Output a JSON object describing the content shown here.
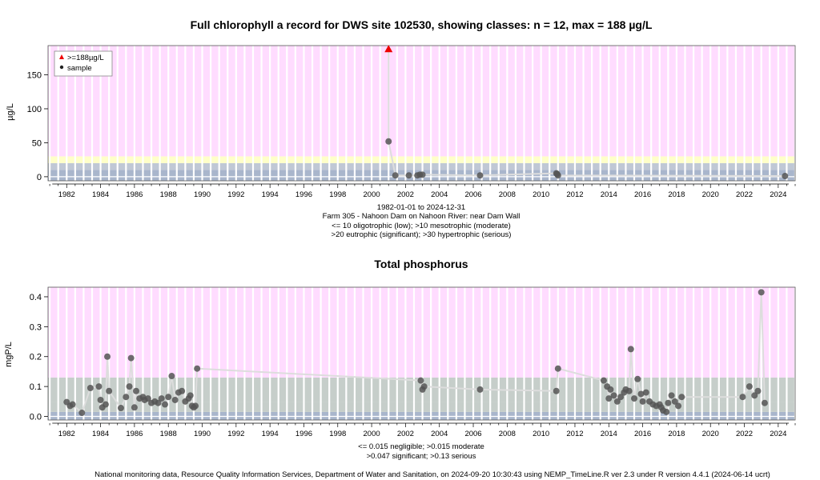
{
  "colors": {
    "oligotrophic": "#a9b6cc",
    "mesotrophic": "#c0c8d5",
    "eutrophic": "#ffffc8",
    "hypertrophic": "#ffdcff",
    "p_negligible": "#a9b6cc",
    "p_moderate": "#c6ceca",
    "p_significant": "#c6ceca",
    "p_serious": "#ffdcff",
    "sample": "#555555",
    "exceed": "#ee0000",
    "line": "#dddddd"
  },
  "footer": "National monitoring data, Resource Quality Information Services, Department of Water and Sanitation, on 2024-09-20 10:30:43 using NEMP_TimeLine.R ver 2.3 under R version 4.4.1 (2024-06-14 ucrt)",
  "chart_data": [
    {
      "type": "scatter",
      "title": "Full chlorophyll a record for DWS site 102530, showing classes: n = 12, max = 188 µg/L",
      "ylabel": "µg/L",
      "xlabel": "",
      "xlim": [
        1980.9,
        2025.0
      ],
      "ylim": [
        -6,
        193
      ],
      "xticks": [
        1982,
        1984,
        1986,
        1988,
        1990,
        1992,
        1994,
        1996,
        1998,
        2000,
        2002,
        2004,
        2006,
        2008,
        2010,
        2012,
        2014,
        2016,
        2018,
        2020,
        2022,
        2024
      ],
      "yticks": [
        0,
        50,
        100,
        150
      ],
      "bands": [
        {
          "from": -6,
          "to": 10,
          "color_key": "oligotrophic"
        },
        {
          "from": 10,
          "to": 20,
          "color_key": "mesotrophic"
        },
        {
          "from": 20,
          "to": 30,
          "color_key": "eutrophic"
        },
        {
          "from": 30,
          "to": 193,
          "color_key": "hypertrophic"
        }
      ],
      "legend": {
        "position": "top-left",
        "entries": [
          {
            "label": ">=188µg/L",
            "marker": "triangle"
          },
          {
            "label": "sample",
            "marker": "dot"
          }
        ]
      },
      "caption": [
        "1982-01-01 to 2024-12-31",
        "Farm 305 - Nahoon Dam on Nahoon River: near Dam Wall",
        "<= 10 oligotrophic (low); >10 mesotrophic (moderate)",
        ">20 eutrophic (significant); >30 hypertrophic (serious)"
      ],
      "series": [
        {
          "name": "sample",
          "x": [
            2001.0,
            2001.4,
            2002.2,
            2002.7,
            2002.85,
            2003.0,
            2006.4,
            2010.9,
            2010.95,
            2011.0,
            2024.4
          ],
          "y": [
            52,
            2,
            2,
            2,
            3,
            3,
            2,
            5,
            4,
            2,
            1
          ]
        },
        {
          "name": ">=188µg/L",
          "x": [
            2001.0
          ],
          "y": [
            188
          ]
        }
      ]
    },
    {
      "type": "scatter",
      "title": "Total phosphorus",
      "ylabel": "mgP/L",
      "xlabel": "",
      "xlim": [
        1980.9,
        2025.0
      ],
      "ylim": [
        -0.012,
        0.432
      ],
      "xticks": [
        1982,
        1984,
        1986,
        1988,
        1990,
        1992,
        1994,
        1996,
        1998,
        2000,
        2002,
        2004,
        2006,
        2008,
        2010,
        2012,
        2014,
        2016,
        2018,
        2020,
        2022,
        2024
      ],
      "yticks": [
        0.0,
        0.1,
        0.2,
        0.3,
        0.4
      ],
      "bands": [
        {
          "from": -0.012,
          "to": 0.015,
          "color_key": "p_negligible"
        },
        {
          "from": 0.015,
          "to": 0.047,
          "color_key": "p_moderate"
        },
        {
          "from": 0.047,
          "to": 0.13,
          "color_key": "p_significant"
        },
        {
          "from": 0.13,
          "to": 0.432,
          "color_key": "p_serious"
        }
      ],
      "caption": [
        "<= 0.015 negligible; >0.015 moderate",
        ">0.047 significant; >0.13 serious"
      ],
      "series": [
        {
          "name": "sample",
          "x": [
            1982.0,
            1982.2,
            1982.35,
            1982.9,
            1983.4,
            1983.9,
            1984.0,
            1984.1,
            1984.3,
            1984.4,
            1984.5,
            1985.2,
            1985.5,
            1985.7,
            1985.8,
            1986.0,
            1986.1,
            1986.3,
            1986.5,
            1986.6,
            1986.8,
            1987.0,
            1987.2,
            1987.4,
            1987.6,
            1987.8,
            1988.0,
            1988.2,
            1988.4,
            1988.6,
            1988.8,
            1989.0,
            1989.2,
            1989.3,
            1989.4,
            1989.5,
            1989.6,
            1989.7,
            2002.9,
            2003.0,
            2003.1,
            2006.4,
            2010.9,
            2011.0,
            2013.7,
            2013.9,
            2014.0,
            2014.1,
            2014.3,
            2014.5,
            2014.7,
            2014.9,
            2015.0,
            2015.2,
            2015.3,
            2015.5,
            2015.7,
            2015.9,
            2016.0,
            2016.2,
            2016.4,
            2016.6,
            2016.8,
            2017.0,
            2017.1,
            2017.2,
            2017.4,
            2017.5,
            2017.7,
            2017.9,
            2018.1,
            2018.3,
            2021.9,
            2022.3,
            2022.6,
            2022.8,
            2023.0,
            2023.2
          ],
          "y": [
            0.048,
            0.035,
            0.04,
            0.012,
            0.095,
            0.1,
            0.055,
            0.03,
            0.04,
            0.2,
            0.085,
            0.028,
            0.065,
            0.1,
            0.195,
            0.03,
            0.085,
            0.06,
            0.065,
            0.055,
            0.06,
            0.045,
            0.05,
            0.045,
            0.06,
            0.04,
            0.065,
            0.135,
            0.055,
            0.08,
            0.085,
            0.05,
            0.06,
            0.07,
            0.035,
            0.03,
            0.035,
            0.16,
            0.12,
            0.09,
            0.1,
            0.09,
            0.085,
            0.16,
            0.12,
            0.1,
            0.06,
            0.09,
            0.07,
            0.05,
            0.065,
            0.08,
            0.09,
            0.085,
            0.225,
            0.06,
            0.125,
            0.075,
            0.05,
            0.08,
            0.05,
            0.04,
            0.035,
            0.04,
            0.03,
            0.02,
            0.015,
            0.045,
            0.07,
            0.05,
            0.035,
            0.065,
            0.065,
            0.1,
            0.07,
            0.085,
            0.415,
            0.045
          ]
        }
      ]
    }
  ]
}
